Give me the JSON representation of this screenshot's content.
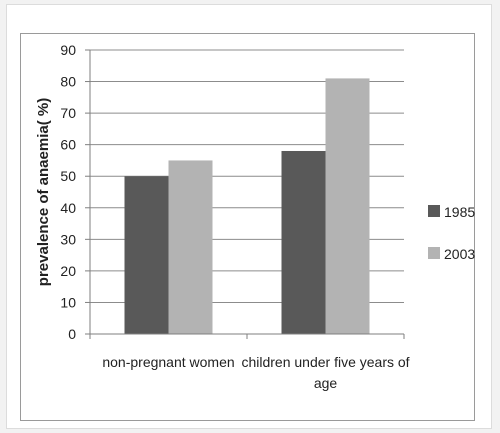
{
  "chart_data": {
    "type": "bar",
    "categories": [
      "non-pregnant women",
      "children under five years of age"
    ],
    "category_lines": [
      [
        "non-pregnant women"
      ],
      [
        "children under five years of",
        "age"
      ]
    ],
    "series": [
      {
        "name": "1985",
        "values": [
          50,
          58
        ],
        "color": "#595959"
      },
      {
        "name": "2003",
        "values": [
          55,
          81
        ],
        "color": "#b3b3b3"
      }
    ],
    "ylabel": "prevalence of anaemia( %)",
    "xlabel": "",
    "title": "",
    "ylim": [
      0,
      90
    ],
    "yticks": [
      0,
      10,
      20,
      30,
      40,
      50,
      60,
      70,
      80,
      90
    ],
    "grid": true,
    "legend": "right"
  }
}
